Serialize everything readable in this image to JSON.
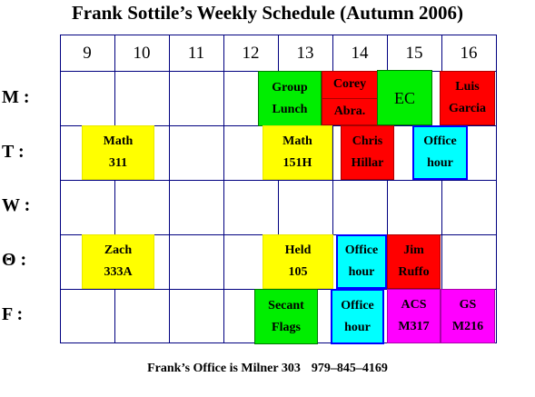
{
  "title": "Frank Sottile’s Weekly Schedule (Autumn 2006)",
  "hours": [
    "9",
    "10",
    "11",
    "12",
    "13",
    "14",
    "15",
    "16"
  ],
  "days": [
    "M :",
    "T :",
    "W :",
    "Θ :",
    "F :"
  ],
  "events": {
    "group_lunch": [
      "Group",
      "Lunch"
    ],
    "corey_abra": [
      "Corey",
      "Abra."
    ],
    "ec": [
      "EC"
    ],
    "luis_garcia": [
      "Luis",
      "Garcia"
    ],
    "math_311": [
      "Math",
      "311"
    ],
    "math_151h": [
      "Math",
      "151H"
    ],
    "chris_hillar": [
      "Chris",
      "Hillar"
    ],
    "office_hour_tue": [
      "Office",
      "hour"
    ],
    "zach_333a": [
      "Zach",
      "333A"
    ],
    "held_105": [
      "Held",
      "105"
    ],
    "office_hour_thu": [
      "Office",
      "hour"
    ],
    "jim_ruffo": [
      "Jim",
      "Ruffo"
    ],
    "secant_flags": [
      "Secant",
      "Flags"
    ],
    "office_hour_fri": [
      "Office",
      "hour"
    ],
    "acs_m317": [
      "ACS",
      "M317"
    ],
    "gs_m216": [
      "GS",
      "M216"
    ]
  },
  "colors": {
    "class": "#ffff00",
    "group": "#00ee00",
    "student": "#ff0000",
    "office": "#00ffff",
    "seminar": "#ff00ff"
  },
  "footer": {
    "office": "Frank’s Office is Milner 303",
    "phone": "979–845–4169"
  }
}
